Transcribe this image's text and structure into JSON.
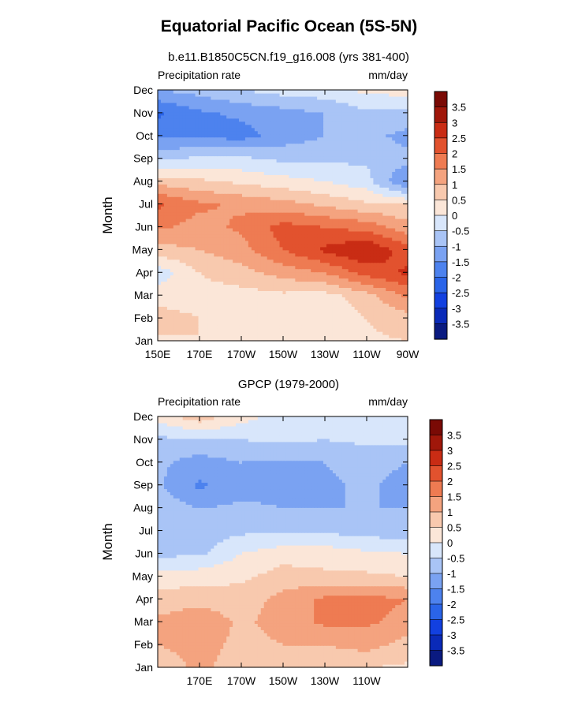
{
  "title": "Equatorial Pacific Ocean (5S-5N)",
  "colors": {
    "contour_levels": [
      -3.5,
      -3,
      -2.5,
      -2,
      -1.5,
      -1,
      -0.5,
      0,
      0.5,
      1,
      1.5,
      2,
      2.5,
      3,
      3.5
    ],
    "palette": [
      "#0a1a80",
      "#0a2ab8",
      "#1240e0",
      "#2a64e8",
      "#4d82ee",
      "#7aa2f2",
      "#a9c4f6",
      "#d8e6fb",
      "#fbe6d8",
      "#f8c9ae",
      "#f4a37f",
      "#ee7b52",
      "#e2522e",
      "#c92c14",
      "#a0170a",
      "#7a0a05"
    ]
  },
  "chart_data": [
    {
      "type": "heatmap",
      "subtitle": "b.e11.B1850C5CN.f19_g16.008 (yrs 381-400)",
      "left_label": "Precipitation rate",
      "right_label": "mm/day",
      "ylabel": "Month",
      "xlabel": "",
      "x_ticks": [
        "150E",
        "170E",
        "170W",
        "150W",
        "130W",
        "110W",
        "90W"
      ],
      "y_ticks": [
        "Jan",
        "Feb",
        "Mar",
        "Apr",
        "May",
        "Jun",
        "Jul",
        "Aug",
        "Sep",
        "Oct",
        "Nov",
        "Dec"
      ],
      "colorbar_labels": [
        "-3.5",
        "-3",
        "-2.5",
        "-2",
        "-1.5",
        "-1",
        "-0.5",
        "0",
        "0.5",
        "1",
        "1.5",
        "2",
        "2.5",
        "3",
        "3.5"
      ],
      "x_lon_east": [
        150,
        170,
        190,
        210,
        230,
        250,
        270
      ],
      "months": [
        "Jan",
        "Feb",
        "Mar",
        "Apr",
        "May",
        "Jun",
        "Jul",
        "Aug",
        "Sep",
        "Oct",
        "Nov",
        "Dec"
      ],
      "values": [
        [
          0.4,
          0.5,
          0.4,
          0.3,
          0.2,
          0.4,
          0.5
        ],
        [
          0.7,
          0.5,
          0.3,
          0.3,
          0.1,
          0.5,
          0.8
        ],
        [
          0.3,
          0.3,
          0.3,
          0.4,
          0.3,
          0.8,
          1.6
        ],
        [
          -0.3,
          0.5,
          0.8,
          1.2,
          1.5,
          2.2,
          2.6
        ],
        [
          0.8,
          1.0,
          1.3,
          2.0,
          2.6,
          3.0,
          2.2
        ],
        [
          1.6,
          1.3,
          1.6,
          2.2,
          2.0,
          1.8,
          1.2
        ],
        [
          2.1,
          1.6,
          1.4,
          1.2,
          0.9,
          0.6,
          0.5
        ],
        [
          0.8,
          0.6,
          0.4,
          0.2,
          0.0,
          -0.3,
          -1.6
        ],
        [
          -0.6,
          -0.4,
          -0.4,
          -0.6,
          -0.6,
          -0.6,
          -0.8
        ],
        [
          -1.6,
          -1.6,
          -1.7,
          -1.3,
          -1.0,
          -0.8,
          -1.2
        ],
        [
          -2.1,
          -1.6,
          -1.4,
          -1.2,
          -1.0,
          -0.6,
          -0.6
        ],
        [
          -1.0,
          -0.8,
          -0.5,
          -0.3,
          -0.2,
          0.1,
          0.2
        ]
      ]
    },
    {
      "type": "heatmap",
      "subtitle": "GPCP (1979-2000)",
      "left_label": "Precipitation rate",
      "right_label": "mm/day",
      "ylabel": "Month",
      "xlabel": "",
      "x_ticks": [
        "170E",
        "170W",
        "150W",
        "130W",
        "110W"
      ],
      "y_ticks": [
        "Jan",
        "Feb",
        "Mar",
        "Apr",
        "May",
        "Jun",
        "Jul",
        "Aug",
        "Sep",
        "Oct",
        "Nov",
        "Dec"
      ],
      "colorbar_labels": [
        "-3.5",
        "-3",
        "-2.5",
        "-2",
        "-1.5",
        "-1",
        "-0.5",
        "0",
        "0.5",
        "1",
        "1.5",
        "2",
        "2.5",
        "3",
        "3.5"
      ],
      "x_lon_east": [
        150,
        170,
        190,
        210,
        230,
        250,
        270
      ],
      "months": [
        "Jan",
        "Feb",
        "Mar",
        "Apr",
        "May",
        "Jun",
        "Jul",
        "Aug",
        "Sep",
        "Oct",
        "Nov",
        "Dec"
      ],
      "values": [
        [
          0.5,
          1.2,
          0.6,
          0.5,
          0.6,
          0.5,
          0.4
        ],
        [
          1.0,
          1.3,
          0.8,
          1.0,
          1.0,
          1.2,
          0.8
        ],
        [
          1.1,
          1.4,
          0.9,
          1.2,
          1.6,
          1.6,
          1.3
        ],
        [
          0.7,
          0.8,
          0.7,
          1.2,
          1.6,
          1.7,
          1.5
        ],
        [
          0.2,
          0.3,
          0.4,
          0.7,
          0.6,
          0.6,
          0.5
        ],
        [
          -0.6,
          -0.6,
          0.0,
          0.3,
          0.3,
          0.1,
          0.0
        ],
        [
          -0.6,
          -0.8,
          -0.6,
          -0.6,
          -0.6,
          -0.7,
          -0.8
        ],
        [
          -0.7,
          -1.0,
          -0.9,
          -1.0,
          -1.0,
          -1.0,
          -1.0
        ],
        [
          -0.9,
          -1.6,
          -1.2,
          -1.2,
          -1.1,
          -0.9,
          -1.2
        ],
        [
          -0.9,
          -1.2,
          -1.0,
          -1.1,
          -1.0,
          -0.8,
          -1.0
        ],
        [
          -0.6,
          -0.6,
          -0.5,
          -0.4,
          -0.5,
          -0.4,
          -0.4
        ],
        [
          0.2,
          0.8,
          0.2,
          -0.2,
          -0.3,
          -0.3,
          -0.1
        ]
      ]
    }
  ]
}
